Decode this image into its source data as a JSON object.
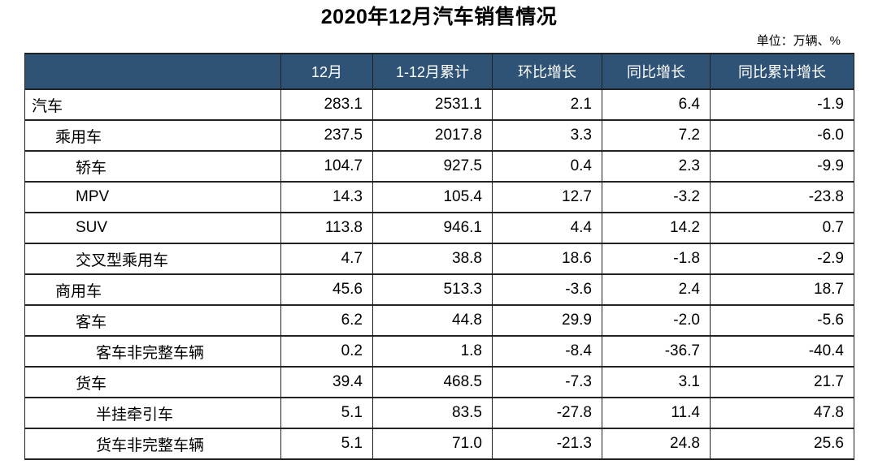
{
  "title": "2020年12月汽车销售情况",
  "unit_note": "单位：万辆、%",
  "colors": {
    "header_bg": "#2F5376",
    "header_text": "#FFFFFF",
    "row_blue": "#BDD7EE",
    "row_gray": "#D9D9D9",
    "border": "#222222"
  },
  "chart_data": {
    "type": "table",
    "title": "2020年12月汽车销售情况",
    "unit_note": "单位：万辆、%",
    "columns": [
      "",
      "12月",
      "1-12月累计",
      "环比增长",
      "同比增长",
      "同比累计增长"
    ],
    "rows": [
      {
        "label": "汽车",
        "level": 0,
        "style": "blue",
        "values": [
          "283.1",
          "2531.1",
          "2.1",
          "6.4",
          "-1.9"
        ]
      },
      {
        "label": "乘用车",
        "level": 1,
        "style": "gray",
        "values": [
          "237.5",
          "2017.8",
          "3.3",
          "7.2",
          "-6.0"
        ]
      },
      {
        "label": "轿车",
        "level": 2,
        "style": "white",
        "values": [
          "104.7",
          "927.5",
          "0.4",
          "2.3",
          "-9.9"
        ]
      },
      {
        "label": "MPV",
        "level": 2,
        "style": "white",
        "values": [
          "14.3",
          "105.4",
          "12.7",
          "-3.2",
          "-23.8"
        ]
      },
      {
        "label": "SUV",
        "level": 2,
        "style": "white",
        "values": [
          "113.8",
          "946.1",
          "4.4",
          "14.2",
          "0.7"
        ]
      },
      {
        "label": "交叉型乘用车",
        "level": 2,
        "style": "white",
        "values": [
          "4.7",
          "38.8",
          "18.6",
          "-1.8",
          "-2.9"
        ]
      },
      {
        "label": "商用车",
        "level": 1,
        "style": "gray",
        "values": [
          "45.6",
          "513.3",
          "-3.6",
          "2.4",
          "18.7"
        ]
      },
      {
        "label": "客车",
        "level": 2,
        "style": "white",
        "values": [
          "6.2",
          "44.8",
          "29.9",
          "-2.0",
          "-5.6"
        ]
      },
      {
        "label": "客车非完整车辆",
        "level": 3,
        "style": "white",
        "values": [
          "0.2",
          "1.8",
          "-8.4",
          "-36.7",
          "-40.4"
        ]
      },
      {
        "label": "货车",
        "level": 2,
        "style": "white",
        "values": [
          "39.4",
          "468.5",
          "-7.3",
          "3.1",
          "21.7"
        ]
      },
      {
        "label": "半挂牵引车",
        "level": 3,
        "style": "white",
        "values": [
          "5.1",
          "83.5",
          "-27.8",
          "11.4",
          "47.8"
        ]
      },
      {
        "label": "货车非完整车辆",
        "level": 3,
        "style": "white",
        "values": [
          "5.1",
          "71.0",
          "-21.3",
          "24.8",
          "25.6"
        ]
      }
    ]
  }
}
